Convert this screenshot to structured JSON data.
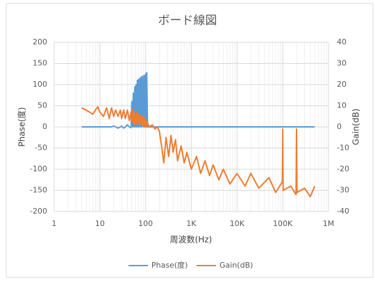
{
  "chart_data": {
    "type": "line",
    "title": "ボード線図",
    "x_label": "周波数(Hz)",
    "y_label": "Phase(度)",
    "y2_label": "Gain(dB)",
    "log_x": true,
    "grid": true,
    "legend": "bottom",
    "xlim": [
      1,
      1000000
    ],
    "xticks": [
      1,
      10,
      100,
      {
        "value": 1000,
        "label": "1K"
      },
      {
        "value": 10000,
        "label": "10K"
      },
      {
        "value": 100000,
        "label": "100K"
      },
      {
        "value": 1000000,
        "label": "1M"
      }
    ],
    "ylim": [
      -200,
      200
    ],
    "yticks": [
      -200,
      -150,
      -100,
      -50,
      0,
      50,
      100,
      150,
      200
    ],
    "y2lim": [
      -40,
      40
    ],
    "y2ticks": [
      -40,
      -30,
      -20,
      -10,
      0,
      10,
      20,
      30,
      40
    ],
    "x": [
      4,
      6,
      7,
      8,
      9,
      10,
      12,
      14,
      16,
      18,
      20,
      22,
      25,
      28,
      30,
      33,
      36,
      40,
      44,
      48,
      50,
      52,
      54,
      56,
      58,
      60,
      62,
      64,
      66,
      68,
      70,
      72,
      75,
      78,
      80,
      83,
      86,
      90,
      93,
      96,
      100,
      103,
      106,
      110,
      120,
      140,
      160,
      180,
      200,
      220,
      250,
      280,
      320,
      360,
      400,
      450,
      500,
      600,
      700,
      800,
      1000,
      1300,
      1600,
      2000,
      2500,
      3000,
      4000,
      5000,
      7000,
      10000,
      15000,
      20000,
      30000,
      50000,
      70000,
      98000,
      100000,
      102000,
      150000,
      195000,
      200000,
      205000,
      300000,
      400000,
      500000
    ],
    "series": [
      {
        "name": "Phase(度)",
        "color": "#5b9bd5",
        "axis": "y",
        "values": [
          0,
          0,
          0,
          0,
          0,
          0,
          0,
          0,
          0,
          0,
          2,
          0,
          -3,
          0,
          2,
          -3,
          0,
          5,
          0,
          -2,
          60,
          0,
          80,
          0,
          95,
          0,
          100,
          0,
          110,
          0,
          112,
          0,
          115,
          0,
          118,
          0,
          120,
          0,
          122,
          0,
          125,
          0,
          128,
          0,
          0,
          0,
          0,
          0,
          0,
          0,
          0,
          0,
          0,
          0,
          0,
          0,
          0,
          0,
          0,
          0,
          0,
          0,
          0,
          0,
          0,
          0,
          0,
          0,
          0,
          0,
          0,
          0,
          0,
          0,
          0,
          0,
          0,
          0,
          0,
          0,
          0,
          0,
          0,
          0,
          0
        ]
      },
      {
        "name": "Gain(dB)",
        "color": "#ed7d31",
        "axis": "y2",
        "values": [
          9,
          7,
          6,
          8,
          9.5,
          7,
          5,
          9,
          4,
          9,
          5,
          8,
          5,
          8,
          4,
          8,
          4,
          8,
          3,
          7,
          2,
          8,
          2,
          7,
          1,
          6,
          2,
          7,
          1,
          6,
          2,
          6,
          1,
          5,
          2,
          5,
          1,
          5,
          0,
          4,
          0,
          3,
          0,
          2,
          0,
          1,
          -1,
          0,
          -2,
          -8,
          -17,
          -5,
          -14,
          -4,
          -12,
          -6,
          -16,
          -9,
          -17,
          -12,
          -20,
          -14,
          -22,
          -16,
          -23,
          -18,
          -25,
          -20,
          -27,
          -22,
          -28,
          -22,
          -29,
          -24,
          -31,
          -26,
          -1,
          -30,
          -28,
          -32,
          -1,
          -31,
          -29,
          -33,
          -28
        ]
      }
    ]
  }
}
